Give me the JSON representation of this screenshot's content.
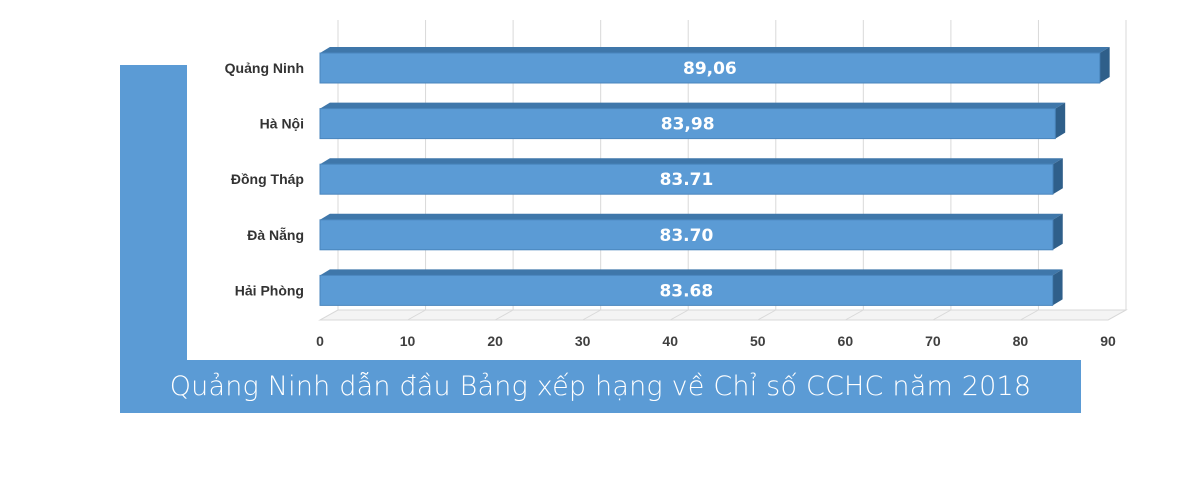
{
  "chart_data": {
    "type": "bar",
    "orientation": "horizontal",
    "title": "Quảng Ninh dẫn đầu Bảng xếp hạng về Chỉ số CCHC năm 2018",
    "categories": [
      "Quảng Ninh",
      "Hà Nội",
      "Đồng Tháp",
      "Đà Nẵng",
      "Hải Phòng"
    ],
    "values": [
      89.06,
      83.98,
      83.71,
      83.7,
      83.68
    ],
    "value_labels": [
      "89,06",
      "83,98",
      "83.71",
      "83.70",
      "83.68"
    ],
    "xlim": [
      0,
      90
    ],
    "xticks": [
      "0",
      "10",
      "20",
      "30",
      "40",
      "50",
      "60",
      "70",
      "80",
      "90"
    ],
    "grid": true,
    "style": "3d",
    "bar_color": "#5b9bd5",
    "bar_side_color": "#2f5f8a",
    "bar_top_color": "#3f77aa",
    "accent_color": "#5b9bd5"
  }
}
